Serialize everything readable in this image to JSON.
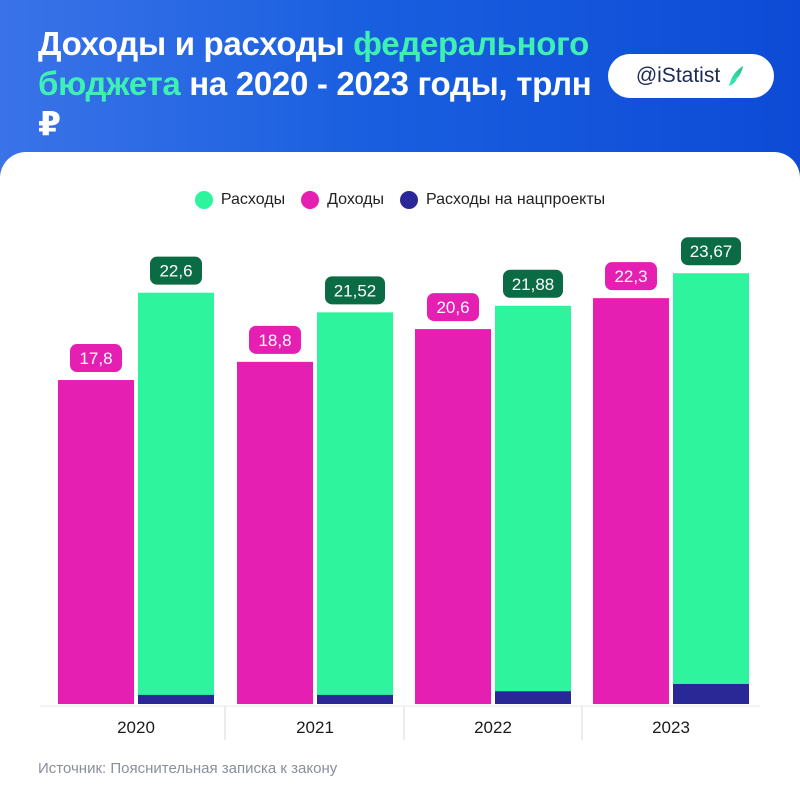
{
  "header": {
    "title_part1": "Доходы и расходы ",
    "title_accent": "федерального бюджета",
    "title_part2": " на 2020 - 2023 годы, трлн ₽",
    "brand": "@iStatist"
  },
  "colors": {
    "header_bg": "#1a5fe0",
    "accent": "#3ef0b2",
    "expenses": "#2ef59d",
    "income": "#e41fb2",
    "national_projects": "#2a2896",
    "expenses_label_bg": "#0b6b45",
    "income_label_bg": "#e41fb2"
  },
  "chart_data": {
    "type": "bar",
    "categories": [
      "2020",
      "2021",
      "2022",
      "2023"
    ],
    "series": [
      {
        "name": "Доходы",
        "color": "#e41fb2",
        "values": [
          17.8,
          18.8,
          20.6,
          22.3
        ],
        "labels": [
          "17,8",
          "18,8",
          "20,6",
          "22,3"
        ]
      },
      {
        "name": "Расходы",
        "color": "#2ef59d",
        "values": [
          22.6,
          21.52,
          21.88,
          23.67
        ],
        "labels": [
          "22,6",
          "21,52",
          "21,88",
          "23,67"
        ]
      },
      {
        "name": "Расходы на нацпроекты",
        "color": "#2a2896",
        "values": [
          0.5,
          0.5,
          0.7,
          1.1
        ]
      }
    ],
    "legend_order": [
      "Расходы",
      "Доходы",
      "Расходы на нацпроекты"
    ],
    "ylim": [
      0,
      24
    ],
    "legend_position": "top-center",
    "grid": false
  },
  "footer": {
    "source": "Источник: Пояснительная записка к закону"
  }
}
